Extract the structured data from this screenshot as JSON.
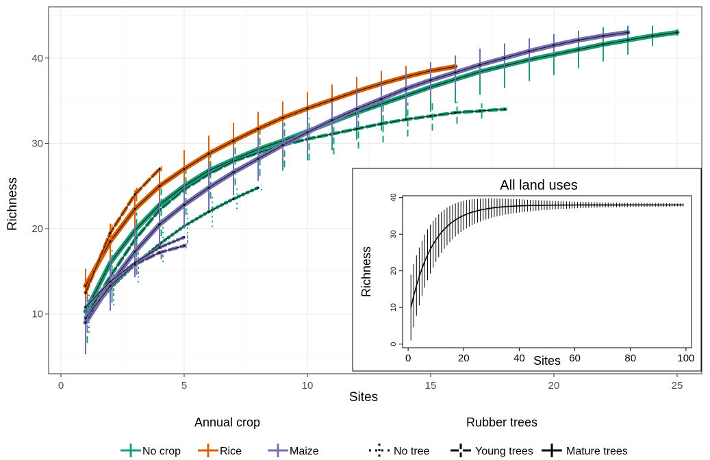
{
  "chart_data": [
    {
      "id": "main",
      "type": "line",
      "xlabel": "Sites",
      "ylabel": "Richness",
      "xlim": [
        -0.5,
        26
      ],
      "ylim": [
        3,
        46
      ],
      "xticks": [
        0,
        5,
        10,
        15,
        20,
        25
      ],
      "yticks": [
        10,
        20,
        30,
        40
      ],
      "grid": true,
      "legend": {
        "position": "bottom",
        "annual_crop_title": "Annual crop",
        "rubber_title": "Rubber trees",
        "crops": [
          {
            "label": "No crop",
            "color": "#1b9e77"
          },
          {
            "label": "Rice",
            "color": "#d95f02"
          },
          {
            "label": "Maize",
            "color": "#7570b3"
          }
        ],
        "trees": [
          {
            "label": "No tree",
            "style": "dotted"
          },
          {
            "label": "Young trees",
            "style": "dashed"
          },
          {
            "label": "Mature trees",
            "style": "solid"
          }
        ]
      },
      "series": [
        {
          "crop": "No crop",
          "trees": "Mature trees",
          "color": "#1b9e77",
          "style": "solid",
          "x": [
            1,
            2,
            3,
            4,
            5,
            6,
            7,
            8,
            9,
            10,
            11,
            12,
            13,
            14,
            15,
            16,
            17,
            18,
            19,
            20,
            21,
            22,
            23,
            24,
            25
          ],
          "y": [
            10.3,
            16.0,
            19.8,
            22.8,
            25.0,
            26.8,
            28.1,
            29.3,
            30.3,
            31.4,
            32.5,
            33.6,
            34.6,
            35.6,
            36.6,
            37.5,
            38.4,
            39.1,
            39.8,
            40.4,
            41.0,
            41.6,
            42.1,
            42.6,
            43.0
          ],
          "err": [
            5.0,
            4.6,
            4.3,
            4.1,
            3.9,
            3.8,
            3.7,
            3.6,
            3.5,
            3.4,
            3.3,
            3.2,
            3.1,
            3.0,
            2.9,
            2.8,
            2.7,
            2.6,
            2.5,
            2.4,
            2.2,
            2.0,
            1.7,
            1.2,
            0.4
          ]
        },
        {
          "crop": "No crop",
          "trees": "Young trees",
          "color": "#1b9e77",
          "style": "dashed",
          "x": [
            1,
            2,
            3,
            4,
            5,
            6,
            7,
            8,
            9,
            10,
            11,
            12,
            13,
            14,
            15,
            16,
            17,
            18
          ],
          "y": [
            9.6,
            14.4,
            18.7,
            22.2,
            24.6,
            26.4,
            27.9,
            28.9,
            29.8,
            30.5,
            31.1,
            31.7,
            32.3,
            32.8,
            33.2,
            33.6,
            33.8,
            34.0
          ],
          "err": [
            3.0,
            3.1,
            3.2,
            3.1,
            3.0,
            2.9,
            2.8,
            2.7,
            2.6,
            2.5,
            2.4,
            2.3,
            2.2,
            2.0,
            1.7,
            1.3,
            0.9,
            0.2
          ]
        },
        {
          "crop": "No crop",
          "trees": "No tree",
          "color": "#1b9e77",
          "style": "dotted",
          "x": [
            1,
            2,
            3,
            4,
            5,
            6,
            7,
            8
          ],
          "y": [
            9.6,
            13.0,
            15.8,
            18.2,
            20.3,
            22.0,
            23.5,
            24.8
          ],
          "err": [
            1.8,
            2.0,
            2.1,
            2.1,
            2.0,
            1.8,
            1.2,
            0.3
          ]
        },
        {
          "crop": "Rice",
          "trees": "Mature trees",
          "color": "#d95f02",
          "style": "solid",
          "x": [
            1,
            2,
            3,
            4,
            5,
            6,
            7,
            8,
            9,
            10,
            11,
            12,
            13,
            14,
            15,
            16
          ],
          "y": [
            13.3,
            18.5,
            22.3,
            25.0,
            27.0,
            28.8,
            30.3,
            31.7,
            33.0,
            34.1,
            35.1,
            36.1,
            37.0,
            37.8,
            38.5,
            39.0
          ],
          "err": [
            1.8,
            2.1,
            2.2,
            2.2,
            2.2,
            2.1,
            2.1,
            2.0,
            1.9,
            1.9,
            1.8,
            1.7,
            1.5,
            1.3,
            0.9,
            0.3
          ]
        },
        {
          "crop": "Rice",
          "trees": "Young trees",
          "color": "#d95f02",
          "style": "dashed",
          "x": [
            1,
            2,
            3,
            4
          ],
          "y": [
            12.5,
            19.5,
            24.0,
            27.0
          ],
          "err": [
            0.8,
            1.0,
            0.8,
            0.3
          ]
        },
        {
          "crop": "Maize",
          "trees": "Mature trees",
          "color": "#7570b3",
          "style": "solid",
          "x": [
            1,
            2,
            3,
            4,
            5,
            6,
            7,
            8,
            9,
            10,
            11,
            12,
            13,
            14,
            15,
            16,
            17,
            18,
            19,
            20,
            21,
            22,
            23
          ],
          "y": [
            9.0,
            13.5,
            17.3,
            20.5,
            22.8,
            24.8,
            26.6,
            28.2,
            29.8,
            31.3,
            32.7,
            34.0,
            35.2,
            36.4,
            37.4,
            38.3,
            39.2,
            40.0,
            40.8,
            41.5,
            42.1,
            42.6,
            43.0
          ],
          "err": [
            3.2,
            3.1,
            3.0,
            2.9,
            2.8,
            2.7,
            2.7,
            2.6,
            2.5,
            2.4,
            2.3,
            2.2,
            2.1,
            2.0,
            1.9,
            1.8,
            1.6,
            1.5,
            1.3,
            1.1,
            0.8,
            0.5,
            0.2
          ]
        },
        {
          "crop": "Maize",
          "trees": "Young trees",
          "color": "#7570b3",
          "style": "dashed",
          "x": [
            1,
            2,
            3,
            4,
            5
          ],
          "y": [
            9.5,
            13.3,
            15.8,
            17.2,
            18.0
          ],
          "err": [
            1.6,
            1.4,
            1.2,
            0.8,
            0.3
          ]
        },
        {
          "crop": "Maize",
          "trees": "No tree",
          "color": "#7570b3",
          "style": "dotted",
          "x": [
            1,
            2,
            3,
            4,
            5
          ],
          "y": [
            10.8,
            13.8,
            16.0,
            17.8,
            19.0
          ],
          "err": [
            1.5,
            1.5,
            1.3,
            1.0,
            0.5
          ]
        }
      ]
    },
    {
      "id": "inset",
      "type": "line",
      "title": "All land uses",
      "xlabel": "Sites",
      "ylabel": "Richness",
      "xlim": [
        -2,
        102
      ],
      "ylim": [
        -1,
        40.5
      ],
      "xticks": [
        0,
        20,
        40,
        60,
        80,
        100
      ],
      "yticks": [
        0,
        10,
        20,
        30,
        40
      ],
      "grid": false,
      "color": "#000000",
      "curve": {
        "asymptote": 38.0,
        "start": 10.0,
        "rate": 0.12
      },
      "err_band": {
        "start": 9.0,
        "end": 0.3,
        "n_sites": 99
      }
    }
  ]
}
